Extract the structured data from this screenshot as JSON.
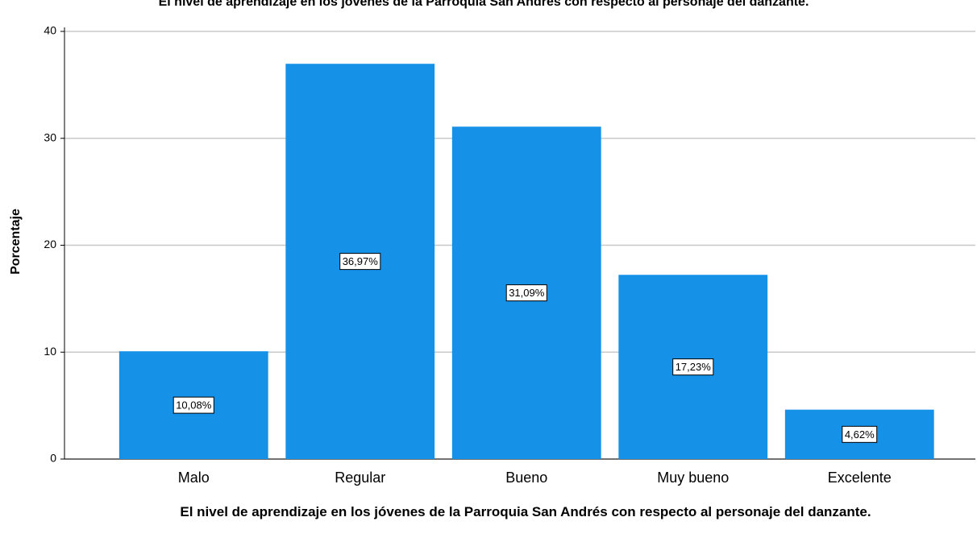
{
  "chart_data": {
    "type": "bar",
    "title": "El nivel de aprendizaje en los jóvenes de la Parroquia San Andrés con respecto al personaje del danzante.",
    "x_label": "El nivel de aprendizaje en los jóvenes de la Parroquia San Andrés con respecto al personaje del danzante.",
    "y_label": "Porcentaje",
    "categories": [
      "Malo",
      "Regular",
      "Bueno",
      "Muy bueno",
      "Excelente"
    ],
    "values": [
      10.08,
      36.97,
      31.09,
      17.23,
      4.62
    ],
    "value_labels": [
      "10,08%",
      "36,97%",
      "31,09%",
      "17,23%",
      "4,62%"
    ],
    "color": "#1591e8",
    "ylim": [
      0,
      40
    ],
    "yticks": [
      0,
      10,
      20,
      30,
      40
    ],
    "grid": true
  }
}
